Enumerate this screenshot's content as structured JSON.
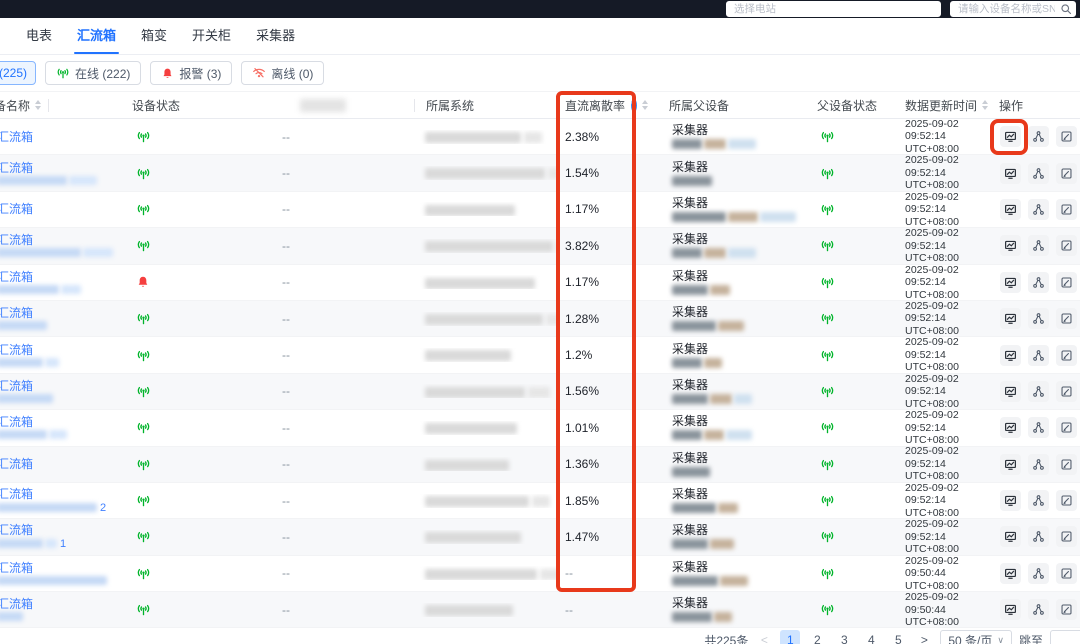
{
  "topbar": {
    "station_placeholder": "选择电站",
    "search_placeholder": "请输入设备名称或SN号"
  },
  "tabs": [
    {
      "label": "电表",
      "active": false
    },
    {
      "label": "汇流箱",
      "active": true
    },
    {
      "label": "箱变",
      "active": false
    },
    {
      "label": "开关柜",
      "active": false
    },
    {
      "label": "采集器",
      "active": false
    }
  ],
  "filters": {
    "all": {
      "label": "(225)"
    },
    "online": {
      "label": "在线 (222)"
    },
    "alarm": {
      "label": "报警 (3)"
    },
    "offline": {
      "label": "离线 (0)"
    }
  },
  "table": {
    "headers": {
      "name": "备名称",
      "device_status": "设备状态",
      "system": "所属系统",
      "dc_dispersion": "直流离散率",
      "parent_device": "所属父设备",
      "parent_status": "父设备状态",
      "update_time": "数据更新时间",
      "actions": "操作"
    },
    "empty_value": "--",
    "rows": [
      {
        "name": "汇流箱",
        "status": "online",
        "redacted_line": false,
        "name_suffix": "",
        "dispersion": "2.38%",
        "parent": "采集器",
        "parent_status": "online",
        "date": "2025-09-02",
        "time": "09:52:14",
        "tz": "UTC+08:00"
      },
      {
        "name": "汇流箱",
        "status": "online",
        "redacted_line": true,
        "name_suffix": "",
        "dispersion": "1.54%",
        "parent": "采集器",
        "parent_status": "online",
        "date": "2025-09-02",
        "time": "09:52:14",
        "tz": "UTC+08:00"
      },
      {
        "name": "汇流箱",
        "status": "online",
        "redacted_line": false,
        "name_suffix": "",
        "dispersion": "1.17%",
        "parent": "采集器",
        "parent_status": "online",
        "date": "2025-09-02",
        "time": "09:52:14",
        "tz": "UTC+08:00"
      },
      {
        "name": "汇流箱",
        "status": "online",
        "redacted_line": true,
        "name_suffix": "",
        "dispersion": "3.82%",
        "parent": "采集器",
        "parent_status": "online",
        "date": "2025-09-02",
        "time": "09:52:14",
        "tz": "UTC+08:00"
      },
      {
        "name": "汇流箱",
        "status": "alarm",
        "redacted_line": true,
        "name_suffix": "",
        "dispersion": "1.17%",
        "parent": "采集器",
        "parent_status": "online",
        "date": "2025-09-02",
        "time": "09:52:14",
        "tz": "UTC+08:00"
      },
      {
        "name": "汇流箱",
        "status": "online",
        "redacted_line": true,
        "name_suffix": "",
        "dispersion": "1.28%",
        "parent": "采集器",
        "parent_status": "online",
        "date": "2025-09-02",
        "time": "09:52:14",
        "tz": "UTC+08:00"
      },
      {
        "name": "汇流箱",
        "status": "online",
        "redacted_line": true,
        "name_suffix": "",
        "dispersion": "1.2%",
        "parent": "采集器",
        "parent_status": "online",
        "date": "2025-09-02",
        "time": "09:52:14",
        "tz": "UTC+08:00"
      },
      {
        "name": "汇流箱",
        "status": "online",
        "redacted_line": true,
        "name_suffix": "",
        "dispersion": "1.56%",
        "parent": "采集器",
        "parent_status": "online",
        "date": "2025-09-02",
        "time": "09:52:14",
        "tz": "UTC+08:00"
      },
      {
        "name": "汇流箱",
        "status": "online",
        "redacted_line": true,
        "name_suffix": "",
        "dispersion": "1.01%",
        "parent": "采集器",
        "parent_status": "online",
        "date": "2025-09-02",
        "time": "09:52:14",
        "tz": "UTC+08:00"
      },
      {
        "name": "汇流箱",
        "status": "online",
        "redacted_line": false,
        "name_suffix": "",
        "dispersion": "1.36%",
        "parent": "采集器",
        "parent_status": "online",
        "date": "2025-09-02",
        "time": "09:52:14",
        "tz": "UTC+08:00"
      },
      {
        "name": "汇流箱",
        "status": "online",
        "redacted_line": true,
        "name_suffix": "2",
        "dispersion": "1.85%",
        "parent": "采集器",
        "parent_status": "online",
        "date": "2025-09-02",
        "time": "09:52:14",
        "tz": "UTC+08:00"
      },
      {
        "name": "汇流箱",
        "status": "online",
        "redacted_line": true,
        "name_suffix": "1",
        "dispersion": "1.47%",
        "parent": "采集器",
        "parent_status": "online",
        "date": "2025-09-02",
        "time": "09:52:14",
        "tz": "UTC+08:00"
      },
      {
        "name": "汇流箱",
        "status": "online",
        "redacted_line": true,
        "name_suffix": "",
        "dispersion": "--",
        "parent": "采集器",
        "parent_status": "online",
        "date": "2025-09-02",
        "time": "09:50:44",
        "tz": "UTC+08:00"
      },
      {
        "name": "汇流箱",
        "status": "online",
        "redacted_line": true,
        "name_suffix": "",
        "dispersion": "--",
        "parent": "采集器",
        "parent_status": "online",
        "date": "2025-09-02",
        "time": "09:50:44",
        "tz": "UTC+08:00"
      }
    ]
  },
  "pagination": {
    "total": "共225条",
    "prev": "<",
    "pages": [
      "1",
      "2",
      "3",
      "4",
      "5"
    ],
    "active_page": "1",
    "next": ">",
    "page_size": "50 条/页",
    "jump_label": "跳至"
  },
  "colors": {
    "accent_blue": "#2173ff",
    "online_green": "#00b42a",
    "alarm_red": "#f53f3f",
    "annotation_red": "#e8391b"
  }
}
